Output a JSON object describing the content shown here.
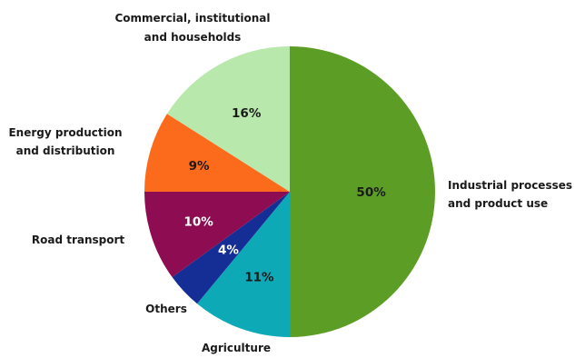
{
  "chart_data": {
    "type": "pie",
    "start": "top",
    "direction": "clockwise",
    "slices": [
      {
        "name": "Industrial processes and product use",
        "value": 50,
        "label": "50%",
        "color": "#5c9e25",
        "label_color": "#1a1a1a",
        "category_lines": [
          "Industrial processes",
          "and product use"
        ]
      },
      {
        "name": "Agriculture",
        "value": 11,
        "label": "11%",
        "color": "#0ea9b7",
        "label_color": "#1a1a1a",
        "category_lines": [
          "Agriculture"
        ]
      },
      {
        "name": "Others",
        "value": 4,
        "label": "4%",
        "color": "#142e96",
        "label_color": "#ffffff",
        "category_lines": [
          "Others"
        ]
      },
      {
        "name": "Road transport",
        "value": 10,
        "label": "10%",
        "color": "#8e0c51",
        "label_color": "#ffffff",
        "category_lines": [
          "Road transport"
        ]
      },
      {
        "name": "Energy production and distribution",
        "value": 9,
        "label": "9%",
        "color": "#fb6b1b",
        "label_color": "#1a1a1a",
        "category_lines": [
          "Energy production",
          "and distribution"
        ]
      },
      {
        "name": "Commercial, institutional and households",
        "value": 16,
        "label": "16%",
        "color": "#b8e8ab",
        "label_color": "#1a1a1a",
        "category_lines": [
          "Commercial, institutional",
          "and households"
        ]
      }
    ]
  }
}
